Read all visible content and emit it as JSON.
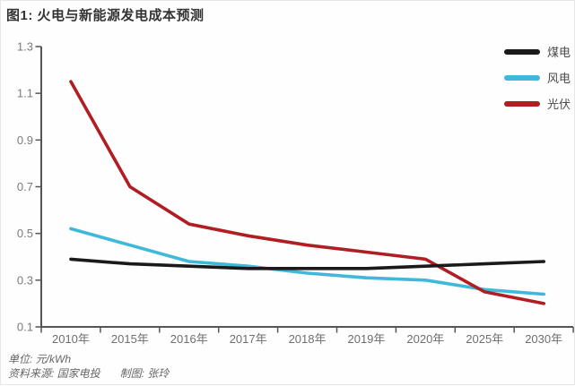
{
  "title": "图1: 火电与新能源发电成本预测",
  "footer": {
    "unit": "单位: 元/kWh",
    "source": "资料来源: 国家电投",
    "author": "制图: 张玲"
  },
  "colors": {
    "coal": "#1a1a1a",
    "wind": "#3fb8da",
    "solar": "#b01d23",
    "axis": "#555555",
    "y_tick_label": "#7b7b7b",
    "x_tick_label": "#6e6e6e",
    "title_text": "#333333",
    "footer_text": "#666666"
  },
  "chart_data": {
    "type": "line",
    "title": "图1: 火电与新能源发电成本预测",
    "xlabel": "",
    "ylabel": "单位: 元/kWh",
    "categories": [
      "2010年",
      "2015年",
      "2016年",
      "2017年",
      "2018年",
      "2019年",
      "2020年",
      "2025年",
      "2030年"
    ],
    "series": [
      {
        "name": "煤电",
        "color": "#1a1a1a",
        "values": [
          0.39,
          0.37,
          0.36,
          0.35,
          0.35,
          0.35,
          0.36,
          0.37,
          0.38
        ]
      },
      {
        "name": "风电",
        "color": "#3fb8da",
        "values": [
          0.52,
          0.45,
          0.38,
          0.36,
          0.33,
          0.31,
          0.3,
          0.26,
          0.24
        ]
      },
      {
        "name": "光伏",
        "color": "#b01d23",
        "values": [
          1.15,
          0.7,
          0.54,
          0.49,
          0.45,
          0.42,
          0.39,
          0.25,
          0.2
        ]
      }
    ],
    "ylim": [
      0.1,
      1.3
    ],
    "yticks": [
      0.1,
      0.3,
      0.5,
      0.7,
      0.9,
      1.1,
      1.3
    ],
    "grid": false,
    "legend_position": "top-right"
  }
}
